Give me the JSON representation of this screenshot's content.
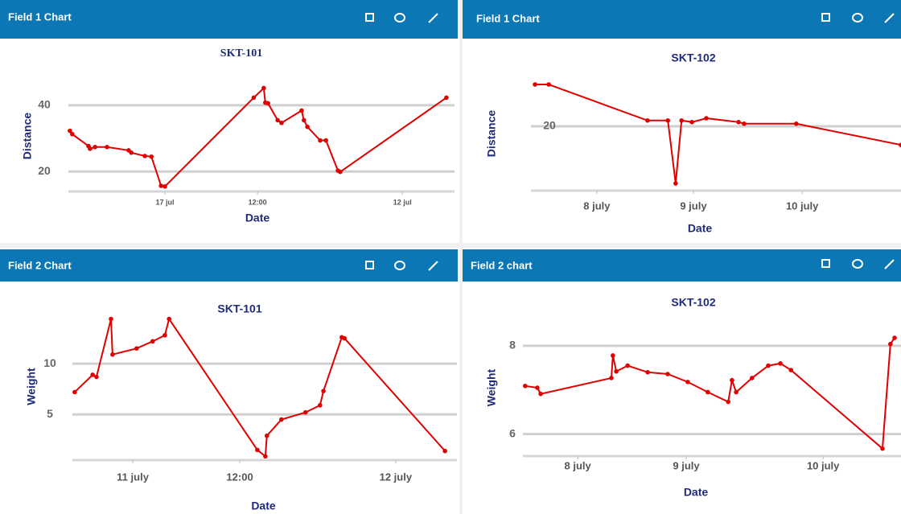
{
  "panels": [
    {
      "header": "Field 1 Chart"
    },
    {
      "header": "Field 1 Chart"
    },
    {
      "header": "Field 2 Chart"
    },
    {
      "header": "Field 2 chart"
    }
  ],
  "chart_data": [
    {
      "type": "line",
      "title": "SKT-101",
      "x_label": "Date",
      "y_label": "Distance",
      "color": "#e00000",
      "grid": true,
      "xlim": [
        0,
        100
      ],
      "ylim": [
        14,
        47.5
      ],
      "xticks": [
        {
          "value": 25,
          "label": "17 jul"
        },
        {
          "value": 49,
          "label": "12:00"
        },
        {
          "value": 86.5,
          "label": "12 jul"
        }
      ],
      "yticks": [
        20,
        40
      ],
      "x": [
        0.4,
        1,
        5.2,
        5.6,
        6.9,
        10,
        15.6,
        16.3,
        19.8,
        21.5,
        24,
        25,
        48,
        50.6,
        51,
        51.7,
        54.2,
        55.2,
        60.4,
        61,
        61.9,
        65.2,
        66.7,
        69.8,
        70.4,
        97.9
      ],
      "values": [
        32.3,
        31.3,
        27.7,
        26.9,
        27.4,
        27.4,
        26.4,
        25.7,
        24.7,
        24.5,
        15.7,
        15.5,
        42.3,
        45.2,
        40.8,
        40.6,
        35.5,
        34.7,
        38.4,
        35.5,
        33.5,
        29.4,
        29.4,
        20.3,
        19.9,
        42.3
      ]
    },
    {
      "type": "line",
      "title": "SKT-102",
      "x_label": "Date",
      "y_label": "Distance",
      "color": "#e00000",
      "grid": true,
      "xlim": [
        0,
        100
      ],
      "ylim": [
        0,
        35.5
      ],
      "xticks": [
        {
          "value": 17.8,
          "label": "8 july"
        },
        {
          "value": 43.9,
          "label": "9 july"
        },
        {
          "value": 73.3,
          "label": "10 july"
        }
      ],
      "yticks": [
        20
      ],
      "x": [
        1.1,
        4.8,
        31.5,
        37,
        39.1,
        40.7,
        43.5,
        47.4,
        56.1,
        57.6,
        71.7,
        100
      ],
      "values": [
        33,
        33,
        21.8,
        21.8,
        2.25,
        21.8,
        21.3,
        22.5,
        21.3,
        20.8,
        20.8,
        14.2
      ]
    },
    {
      "type": "line",
      "title": "SKT-101",
      "x_label": "Date",
      "y_label": "Weight",
      "color": "#e00000",
      "grid": true,
      "xlim": [
        0,
        100
      ],
      "ylim": [
        0.5,
        15
      ],
      "xticks": [
        {
          "value": 15.8,
          "label": "11 july"
        },
        {
          "value": 43.8,
          "label": "12:00"
        },
        {
          "value": 84.6,
          "label": "12 july"
        }
      ],
      "yticks": [
        5,
        10
      ],
      "x": [
        0.6,
        5.3,
        6.3,
        10.1,
        10.5,
        16.8,
        21,
        24.2,
        25.3,
        48.4,
        50.5,
        50.9,
        54.7,
        61,
        64.8,
        65.7,
        70.5,
        71.2,
        97.5
      ],
      "values": [
        7.2,
        8.9,
        8.7,
        14.4,
        10.9,
        11.5,
        12.2,
        12.8,
        14.4,
        1.5,
        0.87,
        2.9,
        4.5,
        5.2,
        5.9,
        7.3,
        12.6,
        12.5,
        1.4
      ]
    },
    {
      "type": "line",
      "title": "SKT-102",
      "x_label": "Date",
      "y_label": "Weight",
      "color": "#e00000",
      "grid": true,
      "xlim": [
        0,
        100
      ],
      "ylim": [
        5.5,
        8.6
      ],
      "xticks": [
        {
          "value": 14.5,
          "label": "8 july"
        },
        {
          "value": 43.2,
          "label": "9 july"
        },
        {
          "value": 79.4,
          "label": "10 july"
        }
      ],
      "yticks": [
        6,
        8
      ],
      "x": [
        0.6,
        3.8,
        4.7,
        23.4,
        23.8,
        24.7,
        27.7,
        33,
        38.3,
        43.6,
        48.9,
        54.3,
        55.3,
        56.4,
        60.6,
        64.9,
        68.1,
        70.9,
        95.1,
        97.2,
        98.3
      ],
      "values": [
        7.09,
        7.05,
        6.91,
        7.27,
        7.78,
        7.42,
        7.55,
        7.4,
        7.36,
        7.18,
        6.95,
        6.73,
        7.22,
        6.95,
        7.27,
        7.55,
        7.6,
        7.45,
        5.67,
        8.04,
        8.18
      ]
    }
  ]
}
